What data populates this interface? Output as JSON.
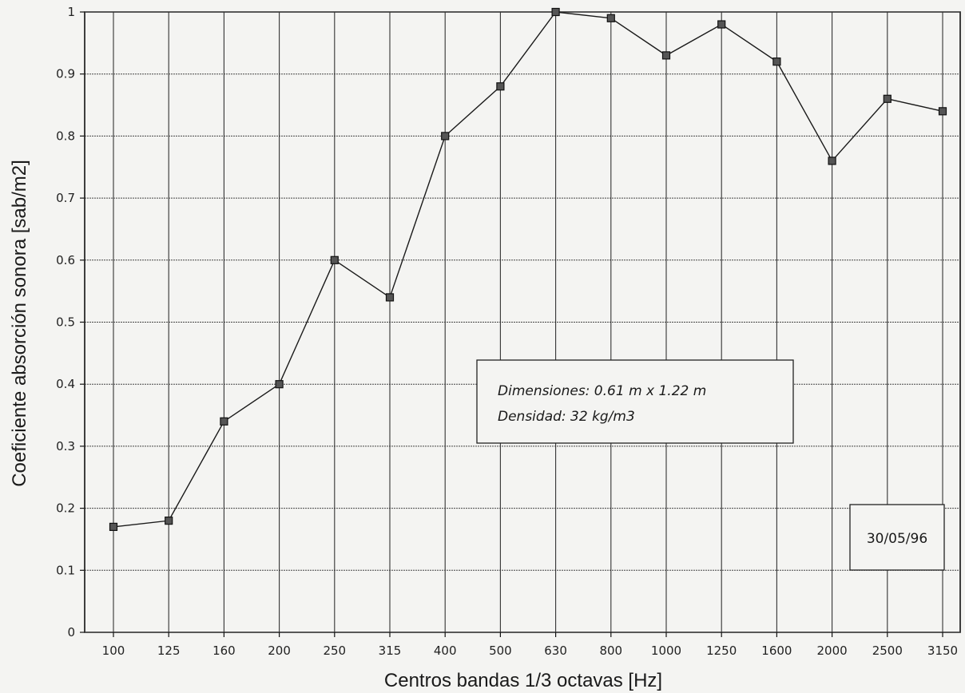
{
  "chart_data": {
    "type": "line",
    "title": "",
    "xlabel": "Centros bandas 1/3 octavas [Hz]",
    "ylabel": "Coeficiente absorción sonora [sab/m2]",
    "categories": [
      "100",
      "125",
      "160",
      "200",
      "250",
      "315",
      "400",
      "500",
      "630",
      "800",
      "1000",
      "1250",
      "1600",
      "2000",
      "2500",
      "3150"
    ],
    "series": [
      {
        "values": [
          0.17,
          0.18,
          0.34,
          0.4,
          0.6,
          0.54,
          0.8,
          0.88,
          1.0,
          0.99,
          0.93,
          0.98,
          0.92,
          0.76,
          0.86,
          0.84
        ]
      }
    ],
    "ylim": [
      0,
      1
    ],
    "yticks": [
      "0",
      "0.1",
      "0.2",
      "0.3",
      "0.4",
      "0.5",
      "0.6",
      "0.7",
      "0.8",
      "0.9",
      "1"
    ],
    "grid": true,
    "marker": "square",
    "line_color": "#1a1a1a",
    "annotations": {
      "dimensions": "Dimensiones: 0.61 m x 1.22 m",
      "density": "Densidad: 32 kg/m3",
      "date": "30/05/96"
    }
  }
}
